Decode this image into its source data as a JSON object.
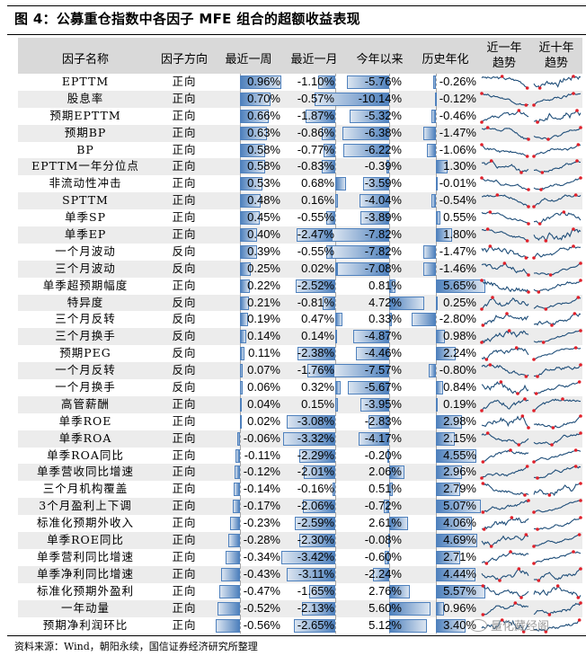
{
  "title": "图 4：公募重仓指数中各因子 MFE 组合的超额收益表现",
  "header": {
    "name": "因子名称",
    "direction": "因子方向",
    "week": "最近一周",
    "month": "最近一月",
    "ytd": "今年以来",
    "hist": "历史年化",
    "trend1y_line1": "近一年",
    "trend1y_line2": "趋势",
    "trend10y_line1": "近十年",
    "trend10y_line2": "趋势"
  },
  "colors": {
    "bar": "#4f81bd",
    "bar_light": "#dbe5f1",
    "header_bg": "#d9d9d9",
    "alt_row_bg": "#ececec",
    "spark_line": "#1f4e79",
    "spark_point": "#e0202a"
  },
  "rows": [
    {
      "name": "EPTTM",
      "direction": "正向",
      "week": "0.96%",
      "month": "-1.10%",
      "ytd": "-5.76%",
      "hist": "-0.26%",
      "w": 0.96,
      "m": -1.1,
      "y": -5.76,
      "h": -0.26
    },
    {
      "name": "股息率",
      "direction": "正向",
      "week": "0.70%",
      "month": "-0.57%",
      "ytd": "-10.14%",
      "hist": "-0.12%",
      "w": 0.7,
      "m": -0.57,
      "y": -10.14,
      "h": -0.12
    },
    {
      "name": "预期EPTTM",
      "direction": "正向",
      "week": "0.66%",
      "month": "-1.87%",
      "ytd": "-5.32%",
      "hist": "-0.46%",
      "w": 0.66,
      "m": -1.87,
      "y": -5.32,
      "h": -0.46
    },
    {
      "name": "预期BP",
      "direction": "正向",
      "week": "0.63%",
      "month": "-0.86%",
      "ytd": "-6.38%",
      "hist": "-1.47%",
      "w": 0.63,
      "m": -0.86,
      "y": -6.38,
      "h": -1.47
    },
    {
      "name": "BP",
      "direction": "正向",
      "week": "0.58%",
      "month": "-0.77%",
      "ytd": "-6.22%",
      "hist": "-1.06%",
      "w": 0.58,
      "m": -0.77,
      "y": -6.22,
      "h": -1.06
    },
    {
      "name": "EPTTM一年分位点",
      "direction": "正向",
      "week": "0.58%",
      "month": "-0.83%",
      "ytd": "-0.39%",
      "hist": "1.30%",
      "w": 0.58,
      "m": -0.83,
      "y": -0.39,
      "h": 1.3
    },
    {
      "name": "非流动性冲击",
      "direction": "正向",
      "week": "0.53%",
      "month": "0.68%",
      "ytd": "-3.59%",
      "hist": "-0.01%",
      "w": 0.53,
      "m": 0.68,
      "y": -3.59,
      "h": -0.01
    },
    {
      "name": "SPTTM",
      "direction": "正向",
      "week": "0.48%",
      "month": "0.16%",
      "ytd": "-4.04%",
      "hist": "-0.54%",
      "w": 0.48,
      "m": 0.16,
      "y": -4.04,
      "h": -0.54
    },
    {
      "name": "单季SP",
      "direction": "正向",
      "week": "0.45%",
      "month": "-0.55%",
      "ytd": "-3.89%",
      "hist": "0.55%",
      "w": 0.45,
      "m": -0.55,
      "y": -3.89,
      "h": 0.55
    },
    {
      "name": "单季EP",
      "direction": "正向",
      "week": "0.40%",
      "month": "-2.47%",
      "ytd": "-7.82%",
      "hist": "1.80%",
      "w": 0.4,
      "m": -2.47,
      "y": -7.82,
      "h": 1.8
    },
    {
      "name": "一个月波动",
      "direction": "反向",
      "week": "0.39%",
      "month": "-0.55%",
      "ytd": "-7.82%",
      "hist": "-1.47%",
      "w": 0.39,
      "m": -0.55,
      "y": -7.82,
      "h": -1.47
    },
    {
      "name": "三个月波动",
      "direction": "反向",
      "week": "0.25%",
      "month": "0.02%",
      "ytd": "-7.08%",
      "hist": "-1.46%",
      "w": 0.25,
      "m": 0.02,
      "y": -7.08,
      "h": -1.46
    },
    {
      "name": "单季超预期幅度",
      "direction": "正向",
      "week": "0.22%",
      "month": "-2.52%",
      "ytd": "0.81%",
      "hist": "5.65%",
      "w": 0.22,
      "m": -2.52,
      "y": 0.81,
      "h": 5.65
    },
    {
      "name": "特异度",
      "direction": "反向",
      "week": "0.21%",
      "month": "-0.81%",
      "ytd": "4.72%",
      "hist": "0.25%",
      "w": 0.21,
      "m": -0.81,
      "y": 4.72,
      "h": 0.25
    },
    {
      "name": "三个月反转",
      "direction": "反向",
      "week": "0.19%",
      "month": "0.47%",
      "ytd": "0.33%",
      "hist": "-2.80%",
      "w": 0.19,
      "m": 0.47,
      "y": 0.33,
      "h": -2.8
    },
    {
      "name": "三个月换手",
      "direction": "反向",
      "week": "0.14%",
      "month": "0.14%",
      "ytd": "-4.87%",
      "hist": "0.98%",
      "w": 0.14,
      "m": 0.14,
      "y": -4.87,
      "h": 0.98
    },
    {
      "name": "预期PEG",
      "direction": "反向",
      "week": "0.11%",
      "month": "-2.38%",
      "ytd": "-4.46%",
      "hist": "2.24%",
      "w": 0.11,
      "m": -2.38,
      "y": -4.46,
      "h": 2.24
    },
    {
      "name": "一个月反转",
      "direction": "反向",
      "week": "0.07%",
      "month": "-1.76%",
      "ytd": "-7.57%",
      "hist": "-0.80%",
      "w": 0.07,
      "m": -1.76,
      "y": -7.57,
      "h": -0.8
    },
    {
      "name": "一个月换手",
      "direction": "反向",
      "week": "0.06%",
      "month": "0.32%",
      "ytd": "-5.67%",
      "hist": "0.84%",
      "w": 0.06,
      "m": 0.32,
      "y": -5.67,
      "h": 0.84
    },
    {
      "name": "高管薪酬",
      "direction": "正向",
      "week": "0.04%",
      "month": "0.15%",
      "ytd": "-3.95%",
      "hist": "0.19%",
      "w": 0.04,
      "m": 0.15,
      "y": -3.95,
      "h": 0.19
    },
    {
      "name": "单季ROE",
      "direction": "正向",
      "week": "0.02%",
      "month": "-3.08%",
      "ytd": "-2.83%",
      "hist": "2.98%",
      "w": 0.02,
      "m": -3.08,
      "y": -2.83,
      "h": 2.98
    },
    {
      "name": "单季ROA",
      "direction": "正向",
      "week": "-0.06%",
      "month": "-3.32%",
      "ytd": "-4.17%",
      "hist": "2.15%",
      "w": -0.06,
      "m": -3.32,
      "y": -4.17,
      "h": 2.15
    },
    {
      "name": "单季ROA同比",
      "direction": "正向",
      "week": "-0.11%",
      "month": "-2.29%",
      "ytd": "-0.20%",
      "hist": "4.55%",
      "w": -0.11,
      "m": -2.29,
      "y": -0.2,
      "h": 4.55
    },
    {
      "name": "单季营收同比增速",
      "direction": "正向",
      "week": "-0.12%",
      "month": "-2.01%",
      "ytd": "2.06%",
      "hist": "2.96%",
      "w": -0.12,
      "m": -2.01,
      "y": 2.06,
      "h": 2.96
    },
    {
      "name": "三个月机构覆盖",
      "direction": "正向",
      "week": "-0.14%",
      "month": "-0.16%",
      "ytd": "0.51%",
      "hist": "2.79%",
      "w": -0.14,
      "m": -0.16,
      "y": 0.51,
      "h": 2.79
    },
    {
      "name": "3个月盈利上下调",
      "direction": "正向",
      "week": "-0.17%",
      "month": "-2.06%",
      "ytd": "-0.72%",
      "hist": "5.07%",
      "w": -0.17,
      "m": -2.06,
      "y": -0.72,
      "h": 5.07
    },
    {
      "name": "标准化预期外收入",
      "direction": "正向",
      "week": "-0.23%",
      "month": "-2.59%",
      "ytd": "2.61%",
      "hist": "4.06%",
      "w": -0.23,
      "m": -2.59,
      "y": 2.61,
      "h": 4.06
    },
    {
      "name": "单季ROE同比",
      "direction": "正向",
      "week": "-0.28%",
      "month": "-2.30%",
      "ytd": "-0.08%",
      "hist": "4.69%",
      "w": -0.28,
      "m": -2.3,
      "y": -0.08,
      "h": 4.69
    },
    {
      "name": "单季营利同比增速",
      "direction": "正向",
      "week": "-0.34%",
      "month": "-3.42%",
      "ytd": "-0.60%",
      "hist": "2.71%",
      "w": -0.34,
      "m": -3.42,
      "y": -0.6,
      "h": 2.71
    },
    {
      "name": "单季净利同比增速",
      "direction": "正向",
      "week": "-0.43%",
      "month": "-3.11%",
      "ytd": "-2.24%",
      "hist": "4.44%",
      "w": -0.43,
      "m": -3.11,
      "y": -2.24,
      "h": 4.44
    },
    {
      "name": "标准化预期外盈利",
      "direction": "正向",
      "week": "-0.47%",
      "month": "-1.65%",
      "ytd": "2.76%",
      "hist": "5.57%",
      "w": -0.47,
      "m": -1.65,
      "y": 2.76,
      "h": 5.57
    },
    {
      "name": "一年动量",
      "direction": "正向",
      "week": "-0.52%",
      "month": "-2.13%",
      "ytd": "5.60%",
      "hist": "0.96%",
      "w": -0.52,
      "m": -2.13,
      "y": 5.6,
      "h": 0.96
    },
    {
      "name": "预期净利润环比",
      "direction": "正向",
      "week": "-0.56%",
      "month": "-2.65%",
      "ytd": "5.12%",
      "hist": "3.40%",
      "w": -0.56,
      "m": -2.65,
      "y": 5.12,
      "h": 3.4
    }
  ],
  "source": "资料来源：Wind，朝阳永续，国信证券经济研究所整理",
  "watermark": "量化藏经阁"
}
